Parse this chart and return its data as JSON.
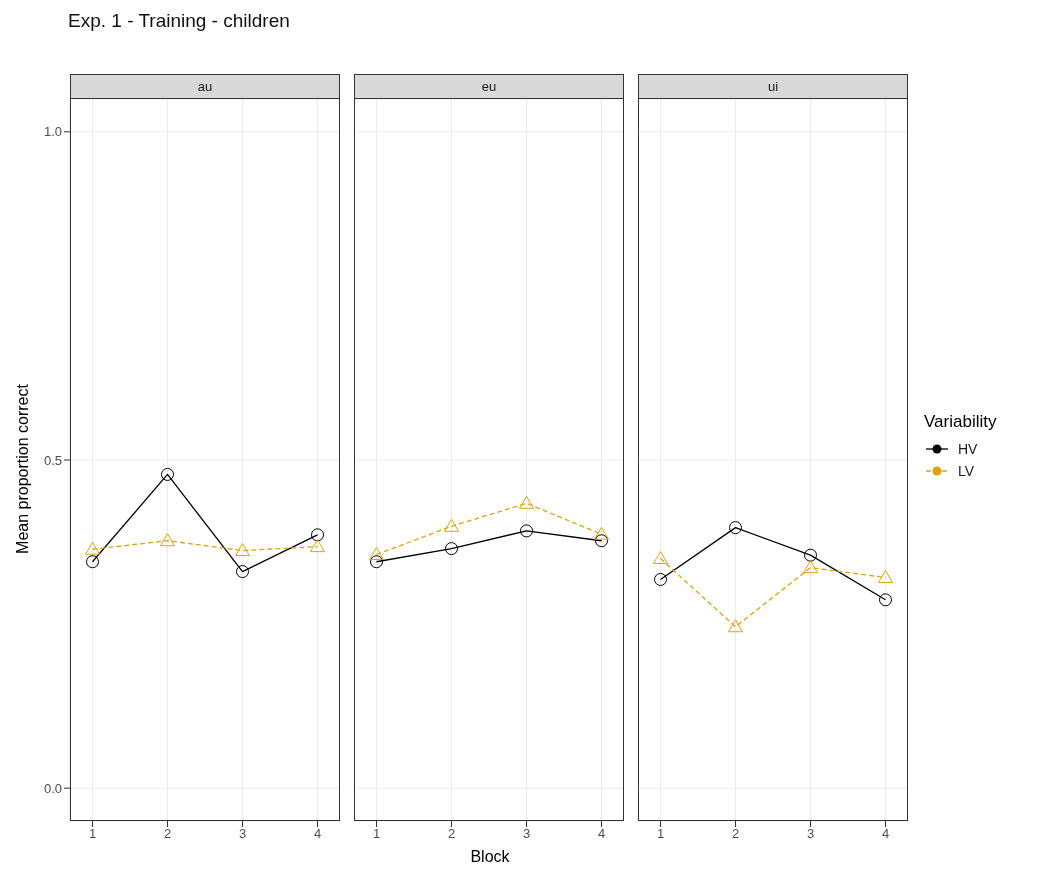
{
  "chart_data": [
    {
      "type": "line",
      "title": "Exp. 1 - Training - children",
      "subtitle": "au",
      "ylabel": "Mean proportion correct",
      "categories": [
        "1",
        "2",
        "3",
        "4"
      ],
      "ylim": [
        -0.05,
        1.05
      ],
      "yticks": [
        {
          "value": 0,
          "label": "0.0"
        },
        {
          "value": 0.5,
          "label": "0.5"
        },
        {
          "value": 1,
          "label": "1.0"
        }
      ],
      "grid": true,
      "series": [
        {
          "color": "#000000",
          "marker": "circle",
          "line_style": "solid",
          "values": [
            0.345,
            0.478,
            0.33,
            0.386
          ]
        },
        {
          "color": "#e0a30a",
          "marker": "triangle",
          "line_style": "dashed",
          "values": [
            0.364,
            0.377,
            0.362,
            0.368
          ]
        }
      ]
    },
    {
      "type": "line",
      "subtitle": "eu",
      "xlabel": "Block",
      "categories": [
        "1",
        "2",
        "3",
        "4"
      ],
      "ylim": [
        -0.05,
        1.05
      ],
      "yticks": [
        0,
        0.5,
        1
      ],
      "grid": true,
      "tick_labels": "x",
      "series": [
        {
          "color": "#000000",
          "marker": "circle",
          "line_style": "solid",
          "values": [
            0.345,
            0.365,
            0.392,
            0.377
          ]
        },
        {
          "color": "#e0a30a",
          "marker": "triangle",
          "line_style": "dashed",
          "values": [
            0.356,
            0.399,
            0.434,
            0.387
          ]
        }
      ]
    },
    {
      "type": "line",
      "subtitle": "ui",
      "legend_title": "Variability",
      "legend": "right",
      "categories": [
        "1",
        "2",
        "3",
        "4"
      ],
      "ylim": [
        -0.05,
        1.05
      ],
      "yticks": [
        0,
        0.5,
        1
      ],
      "grid": true,
      "tick_labels": "x",
      "series": [
        {
          "name": "HV",
          "color": "#000000",
          "marker": "circle",
          "line_style": "solid",
          "values": [
            0.318,
            0.397,
            0.355,
            0.287
          ]
        },
        {
          "name": "LV",
          "color": "#e0a30a",
          "marker": "triangle",
          "line_style": "dashed",
          "values": [
            0.35,
            0.246,
            0.336,
            0.321
          ]
        }
      ]
    }
  ]
}
